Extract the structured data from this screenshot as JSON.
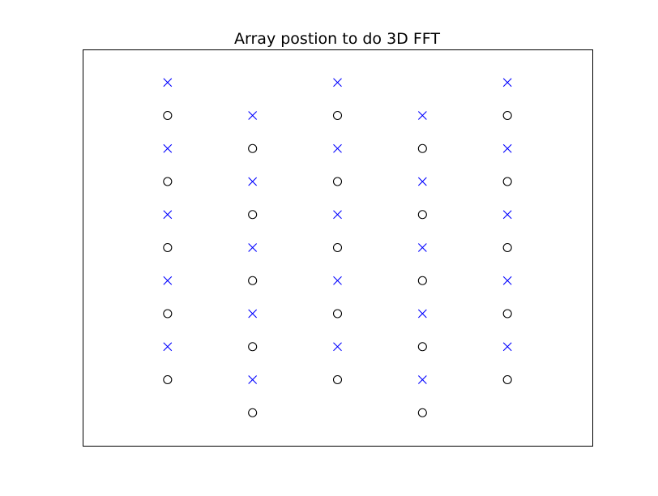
{
  "chart_data": {
    "type": "scatter",
    "title": "Array postion to do 3D FFT",
    "xlabel": "",
    "ylabel": "",
    "xlim": [
      0,
      6
    ],
    "ylim": [
      0,
      12
    ],
    "grid": false,
    "axes_ticks_visible": false,
    "series": [
      {
        "marker": "x",
        "color": "#0000ff",
        "points": [
          [
            1,
            11
          ],
          [
            3,
            11
          ],
          [
            5,
            11
          ],
          [
            2,
            10
          ],
          [
            4,
            10
          ],
          [
            1,
            9
          ],
          [
            3,
            9
          ],
          [
            5,
            9
          ],
          [
            2,
            8
          ],
          [
            4,
            8
          ],
          [
            1,
            7
          ],
          [
            3,
            7
          ],
          [
            5,
            7
          ],
          [
            2,
            6
          ],
          [
            4,
            6
          ],
          [
            1,
            5
          ],
          [
            3,
            5
          ],
          [
            5,
            5
          ],
          [
            2,
            4
          ],
          [
            4,
            4
          ],
          [
            1,
            3
          ],
          [
            3,
            3
          ],
          [
            5,
            3
          ],
          [
            2,
            2
          ],
          [
            4,
            2
          ]
        ]
      },
      {
        "marker": "circle-open",
        "color": "#000000",
        "points": [
          [
            1,
            10
          ],
          [
            3,
            10
          ],
          [
            5,
            10
          ],
          [
            2,
            9
          ],
          [
            4,
            9
          ],
          [
            1,
            8
          ],
          [
            3,
            8
          ],
          [
            5,
            8
          ],
          [
            2,
            7
          ],
          [
            4,
            7
          ],
          [
            1,
            6
          ],
          [
            3,
            6
          ],
          [
            5,
            6
          ],
          [
            2,
            5
          ],
          [
            4,
            5
          ],
          [
            1,
            4
          ],
          [
            3,
            4
          ],
          [
            5,
            4
          ],
          [
            2,
            3
          ],
          [
            4,
            3
          ],
          [
            1,
            2
          ],
          [
            3,
            2
          ],
          [
            5,
            2
          ],
          [
            2,
            1
          ],
          [
            4,
            1
          ]
        ]
      }
    ]
  }
}
